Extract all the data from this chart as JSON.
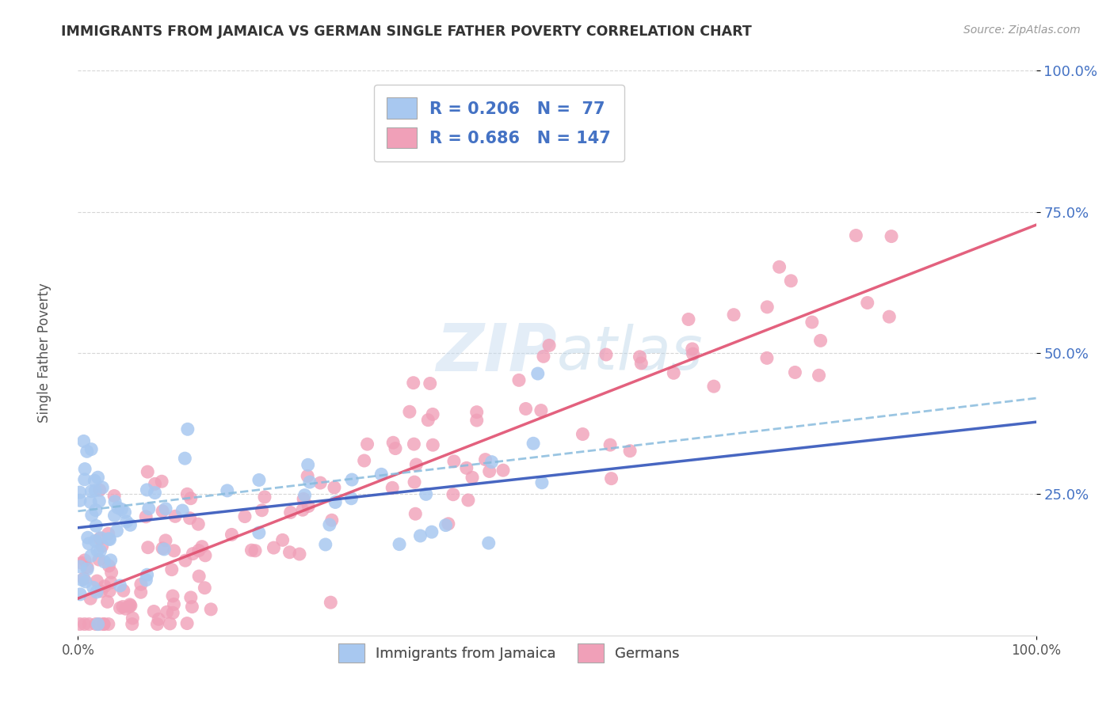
{
  "title": "IMMIGRANTS FROM JAMAICA VS GERMAN SINGLE FATHER POVERTY CORRELATION CHART",
  "source": "Source: ZipAtlas.com",
  "ylabel": "Single Father Poverty",
  "blue_R": 0.206,
  "blue_N": 77,
  "pink_R": 0.686,
  "pink_N": 147,
  "blue_dot_color": "#A8C8F0",
  "pink_dot_color": "#F0A0B8",
  "blue_line_color": "#3355BB",
  "pink_line_color": "#E05070",
  "dashed_line_color": "#88BBDD",
  "legend_label_blue": "Immigrants from Jamaica",
  "legend_label_pink": "Germans",
  "background_color": "#FFFFFF",
  "grid_color": "#CCCCCC",
  "title_color": "#333333",
  "source_color": "#999999",
  "axis_label_color": "#4472C4",
  "watermark_color": "#C8DCF0",
  "seed": 7
}
